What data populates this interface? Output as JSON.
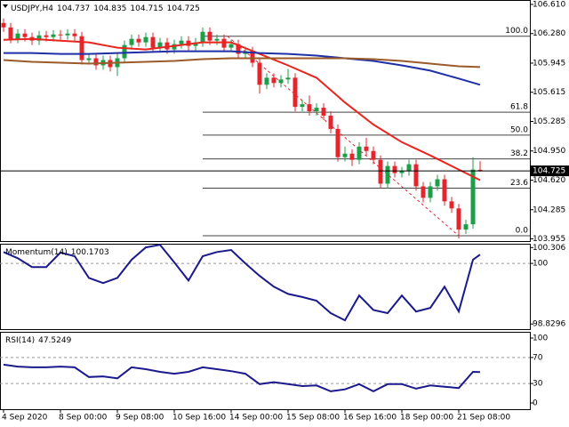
{
  "chart_data": [
    {
      "type": "candlestick",
      "title": "USDJPY,H4",
      "open": [
        106.4,
        106.35,
        106.22,
        106.28,
        106.24,
        106.2,
        106.26,
        106.24,
        106.27,
        106.26,
        106.28,
        106.25,
        105.98,
        106.0,
        105.92,
        105.98,
        105.9,
        106.0,
        106.15,
        106.22,
        106.18,
        106.24,
        106.12,
        106.18,
        106.1,
        106.16,
        106.2,
        106.14,
        106.18,
        106.3,
        106.2,
        106.22,
        106.12,
        106.16,
        106.05,
        106.08,
        105.95,
        105.7,
        105.78,
        105.72,
        105.76,
        105.78,
        105.45,
        105.48,
        105.4,
        105.44,
        105.35,
        105.2,
        104.88,
        104.92,
        104.85,
        105.0,
        104.95,
        104.85,
        104.58,
        104.78,
        104.7,
        104.72,
        104.8,
        104.55,
        104.42,
        104.55,
        104.63,
        104.38,
        104.3,
        104.06,
        104.12,
        104.737
      ],
      "high": [
        106.45,
        106.4,
        106.33,
        106.33,
        106.29,
        106.31,
        106.31,
        106.32,
        106.32,
        106.33,
        106.33,
        106.3,
        106.05,
        106.05,
        106.03,
        106.03,
        106.05,
        106.2,
        106.27,
        106.27,
        106.29,
        106.29,
        106.23,
        106.23,
        106.21,
        106.25,
        106.25,
        106.23,
        106.35,
        106.35,
        106.27,
        106.27,
        106.21,
        106.21,
        106.13,
        106.13,
        106.0,
        105.83,
        105.83,
        105.81,
        105.88,
        105.83,
        105.53,
        105.58,
        105.49,
        105.49,
        105.4,
        105.25,
        105.0,
        104.97,
        105.05,
        105.1,
        105.0,
        104.9,
        104.83,
        104.83,
        104.77,
        104.85,
        104.85,
        104.6,
        104.6,
        104.68,
        104.68,
        104.43,
        104.35,
        104.17,
        104.88,
        104.835
      ],
      "low": [
        106.3,
        106.17,
        106.17,
        106.19,
        106.15,
        106.15,
        106.19,
        106.19,
        106.21,
        106.21,
        106.2,
        105.93,
        105.93,
        105.87,
        105.87,
        105.85,
        105.8,
        105.95,
        106.1,
        106.13,
        106.13,
        106.07,
        106.07,
        106.05,
        106.05,
        106.11,
        106.09,
        106.09,
        106.13,
        106.15,
        106.15,
        106.07,
        106.07,
        106.0,
        106.0,
        105.9,
        105.6,
        105.65,
        105.67,
        105.67,
        105.71,
        105.4,
        105.4,
        105.35,
        105.35,
        105.3,
        105.15,
        104.83,
        104.83,
        104.78,
        104.8,
        104.9,
        104.8,
        104.53,
        104.53,
        104.65,
        104.65,
        104.67,
        104.5,
        104.37,
        104.37,
        104.5,
        104.33,
        104.25,
        103.96,
        104.01,
        104.07,
        104.715
      ],
      "close": [
        106.35,
        106.22,
        106.28,
        106.24,
        106.2,
        106.26,
        106.24,
        106.27,
        106.26,
        106.28,
        106.25,
        105.98,
        106.0,
        105.92,
        105.98,
        105.9,
        106.0,
        106.15,
        106.22,
        106.18,
        106.24,
        106.12,
        106.18,
        106.1,
        106.16,
        106.2,
        106.14,
        106.18,
        106.3,
        106.2,
        106.22,
        106.12,
        106.16,
        106.05,
        106.08,
        105.95,
        105.7,
        105.78,
        105.72,
        105.76,
        105.78,
        105.45,
        105.48,
        105.4,
        105.44,
        105.35,
        105.2,
        104.88,
        104.92,
        104.85,
        105.0,
        104.95,
        104.85,
        104.58,
        104.78,
        104.7,
        104.72,
        104.8,
        104.55,
        104.42,
        104.55,
        104.63,
        104.38,
        104.3,
        104.06,
        104.12,
        104.74,
        104.725
      ],
      "up_color": "#1f9e4a",
      "down_color": "#e3262d",
      "xlim": [
        -0.5,
        74
      ],
      "ylim": [
        103.93,
        106.66
      ],
      "yticks": [
        {
          "value": 106.61,
          "label": "106.610"
        },
        {
          "value": 106.28,
          "label": "106.280"
        },
        105.945,
        105.615,
        105.285,
        {
          "value": 104.95,
          "label": "104.950"
        },
        {
          "value": 104.62,
          "label": "104.620"
        },
        104.285,
        103.955
      ],
      "xticks": [
        {
          "value": 0,
          "label": "4 Sep 2020"
        },
        {
          "value": 8,
          "label": "8 Sep 00:00"
        },
        {
          "value": 16,
          "label": "9 Sep 08:00"
        },
        {
          "value": 24,
          "label": "10 Sep 16:00"
        },
        {
          "value": 32,
          "label": "14 Sep 00:00"
        },
        {
          "value": 40,
          "label": "15 Sep 08:00"
        },
        {
          "value": 48,
          "label": "16 Sep 16:00"
        },
        {
          "value": 56,
          "label": "18 Sep 00:00"
        },
        {
          "value": 64,
          "label": "21 Sep 08:00"
        }
      ],
      "moving_averages": [
        {
          "color": "#e8251f",
          "x": [
            0,
            4,
            8,
            12,
            16,
            20,
            24,
            28,
            32,
            36,
            40,
            44,
            48,
            52,
            56,
            60,
            64,
            67
          ],
          "values": [
            106.21,
            106.22,
            106.2,
            106.18,
            106.12,
            106.1,
            106.14,
            106.18,
            106.18,
            106.05,
            105.92,
            105.78,
            105.5,
            105.25,
            105.05,
            104.9,
            104.74,
            104.62
          ]
        },
        {
          "color": "#1f2fa8",
          "x": [
            0,
            4,
            8,
            12,
            16,
            20,
            24,
            28,
            32,
            36,
            40,
            44,
            48,
            52,
            56,
            60,
            64,
            67
          ],
          "values": [
            106.06,
            106.06,
            106.05,
            106.05,
            106.06,
            106.07,
            106.08,
            106.08,
            106.08,
            106.06,
            106.05,
            106.03,
            106.0,
            105.97,
            105.92,
            105.86,
            105.77,
            105.7
          ]
        },
        {
          "color": "#9b5a2a",
          "x": [
            0,
            4,
            8,
            12,
            16,
            20,
            24,
            28,
            32,
            36,
            40,
            44,
            48,
            52,
            56,
            60,
            64,
            67
          ],
          "values": [
            105.98,
            105.96,
            105.95,
            105.94,
            105.95,
            105.96,
            105.97,
            105.99,
            106.0,
            106.0,
            106.0,
            106.0,
            106.0,
            105.99,
            105.97,
            105.94,
            105.91,
            105.9
          ]
        }
      ],
      "fib_levels": [
        {
          "label": "100.0",
          "value": 106.25
        },
        {
          "label": "61.8",
          "value": 105.39
        },
        {
          "label": "50.0",
          "value": 105.13
        },
        {
          "label": "38.2",
          "value": 104.86
        },
        {
          "label": "23.6",
          "value": 104.53
        },
        {
          "label": "0.0",
          "value": 103.99
        }
      ],
      "fib_color": "#444444"
    },
    {
      "type": "line",
      "title": "Momentum(14)",
      "color": "#1a1a8c",
      "x": [
        0,
        2,
        4,
        6,
        8,
        10,
        12,
        14,
        16,
        18,
        20,
        22,
        24,
        26,
        28,
        30,
        32,
        34,
        36,
        38,
        40,
        42,
        44,
        46,
        48,
        50,
        52,
        54,
        56,
        58,
        60,
        62,
        64,
        66,
        67
      ],
      "values": [
        100.22,
        100.1,
        99.93,
        99.93,
        100.21,
        100.14,
        99.72,
        99.62,
        99.72,
        100.07,
        100.31,
        100.36,
        100.02,
        99.67,
        100.14,
        100.22,
        100.26,
        100.0,
        99.76,
        99.55,
        99.41,
        99.35,
        99.28,
        99.04,
        98.9,
        99.38,
        99.1,
        99.04,
        99.38,
        99.07,
        99.14,
        99.55,
        99.07,
        100.07,
        100.1703
      ],
      "ylim": [
        98.73,
        100.38
      ],
      "yticks": [
        100.306,
        100,
        98.8296
      ],
      "levels": [
        100
      ]
    },
    {
      "type": "line",
      "title": "RSI(14)",
      "color": "#1a1a8c",
      "x": [
        0,
        2,
        4,
        6,
        8,
        10,
        12,
        14,
        16,
        18,
        20,
        22,
        24,
        26,
        28,
        30,
        32,
        34,
        36,
        38,
        40,
        42,
        44,
        46,
        48,
        50,
        52,
        54,
        56,
        58,
        60,
        62,
        64,
        66,
        67
      ],
      "values": [
        59,
        56,
        55,
        55,
        56,
        55,
        40,
        41,
        38,
        55,
        52,
        48,
        45,
        48,
        55,
        52,
        49,
        45,
        29,
        32,
        29,
        26,
        27,
        18,
        21,
        29,
        18,
        29,
        29,
        22,
        27,
        25,
        23,
        48,
        47.5249
      ],
      "ylim": [
        -9.6,
        109.6
      ],
      "yticks": [
        100,
        70,
        30,
        0
      ],
      "levels": [
        70,
        30
      ]
    }
  ]
}
